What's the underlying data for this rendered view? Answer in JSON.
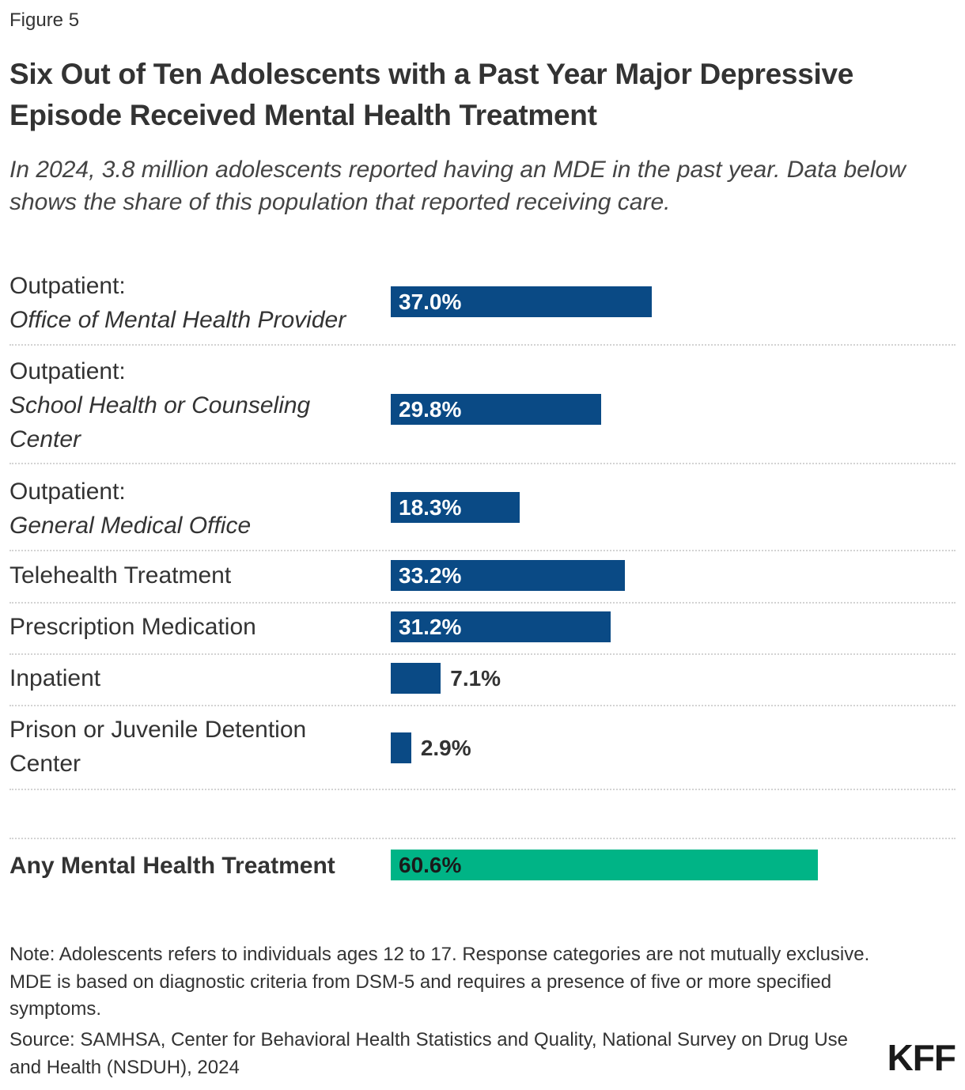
{
  "figure_label": "Figure 5",
  "title": "Six Out of Ten Adolescents with a Past Year Major Depressive Episode Received Mental Health Treatment",
  "subtitle": "In 2024, 3.8 million adolescents reported having an MDE in the past year. Data below shows the share of this population that reported receiving care.",
  "note": "Note: Adolescents refers to individuals ages 12 to 17. Response categories are not mutually exclusive. MDE is based on diagnostic criteria from DSM-5 and requires a presence of five or more specified symptoms.",
  "source": "Source: SAMHSA, Center for Behavioral Health Statistics and Quality, National Survey on Drug Use and Health (NSDUH), 2024",
  "logo_text": "KFF",
  "colors": {
    "bar": "#0a4a85",
    "total_bar": "#00b486"
  },
  "chart_data": {
    "type": "bar",
    "orientation": "horizontal",
    "categories": [
      {
        "main": "Outpatient:",
        "sub": "Office of Mental Health Provider"
      },
      {
        "main": "Outpatient:",
        "sub": "School Health or Counseling Center"
      },
      {
        "main": "Outpatient:",
        "sub": "General Medical Office"
      },
      {
        "main": "Telehealth Treatment",
        "sub": ""
      },
      {
        "main": "Prescription Medication",
        "sub": ""
      },
      {
        "main": "Inpatient",
        "sub": ""
      },
      {
        "main": "Prison or Juvenile Detention Center",
        "sub": ""
      }
    ],
    "values": [
      37.0,
      29.8,
      18.3,
      33.2,
      31.2,
      7.1,
      2.9
    ],
    "value_labels": [
      "37.0%",
      "29.8%",
      "18.3%",
      "33.2%",
      "31.2%",
      "7.1%",
      "2.9%"
    ],
    "total": {
      "label": "Any Mental Health Treatment",
      "value": 60.6,
      "value_label": "60.6%"
    },
    "xlim": [
      0,
      100
    ]
  }
}
